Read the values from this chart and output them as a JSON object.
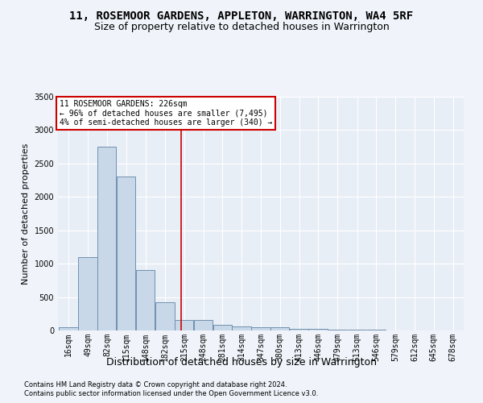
{
  "title": "11, ROSEMOOR GARDENS, APPLETON, WARRINGTON, WA4 5RF",
  "subtitle": "Size of property relative to detached houses in Warrington",
  "xlabel": "Distribution of detached houses by size in Warrington",
  "ylabel": "Number of detached properties",
  "bar_color": "#c8d8e8",
  "bar_edge_color": "#7090b0",
  "background_color": "#e8eef6",
  "grid_color": "#ffffff",
  "fig_bg_color": "#f0f4fa",
  "annotation_text": "11 ROSEMOOR GARDENS: 226sqm\n← 96% of detached houses are smaller (7,495)\n4% of semi-detached houses are larger (340) →",
  "vline_x": 226,
  "vline_color": "#cc0000",
  "categories": [
    "16sqm",
    "49sqm",
    "82sqm",
    "115sqm",
    "148sqm",
    "182sqm",
    "215sqm",
    "248sqm",
    "281sqm",
    "314sqm",
    "347sqm",
    "380sqm",
    "413sqm",
    "446sqm",
    "479sqm",
    "513sqm",
    "546sqm",
    "579sqm",
    "612sqm",
    "645sqm",
    "678sqm"
  ],
  "bin_edges": [
    16,
    49,
    82,
    115,
    148,
    182,
    215,
    248,
    281,
    314,
    347,
    380,
    413,
    446,
    479,
    513,
    546,
    579,
    612,
    645,
    678
  ],
  "bin_width": 33,
  "values": [
    50,
    1100,
    2750,
    2300,
    900,
    420,
    160,
    160,
    90,
    60,
    50,
    45,
    30,
    20,
    15,
    10,
    8,
    5,
    4,
    3,
    2
  ],
  "ylim": [
    0,
    3500
  ],
  "yticks": [
    0,
    500,
    1000,
    1500,
    2000,
    2500,
    3000,
    3500
  ],
  "footer_line1": "Contains HM Land Registry data © Crown copyright and database right 2024.",
  "footer_line2": "Contains public sector information licensed under the Open Government Licence v3.0.",
  "title_fontsize": 10,
  "subtitle_fontsize": 9,
  "tick_fontsize": 7,
  "ylabel_fontsize": 8,
  "xlabel_fontsize": 9,
  "annotation_fontsize": 7,
  "footer_fontsize": 6
}
